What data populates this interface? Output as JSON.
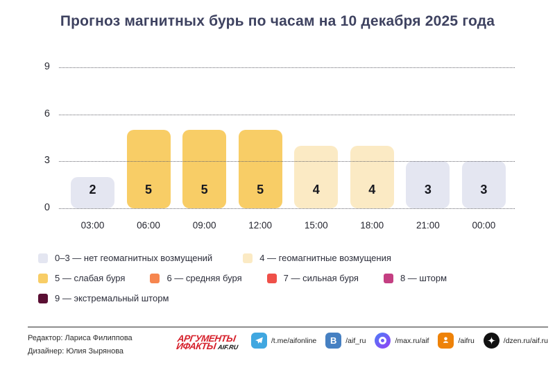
{
  "title": "Прогноз магнитных бурь по часам на 10 декабря 2025 года",
  "chart_data": {
    "type": "bar",
    "title": "Прогноз магнитных бурь по часам на 10 декабря 2025 года",
    "categories": [
      "03:00",
      "06:00",
      "09:00",
      "12:00",
      "15:00",
      "18:00",
      "21:00",
      "00:00"
    ],
    "values": [
      2,
      5,
      5,
      5,
      4,
      4,
      3,
      3
    ],
    "xlabel": "",
    "ylabel": "",
    "ylim": [
      0,
      9
    ],
    "yticks": [
      0,
      3,
      6,
      9
    ],
    "ytick_labels_top_down": [
      "9",
      "6",
      "3",
      "0"
    ],
    "grid": "horizontal-dotted",
    "legend_position": "bottom",
    "bar_colors_by_level": {
      "0-3": "#E4E6F1",
      "4": "#FBEAC4",
      "5": "#F8CD66",
      "6": "#F6864F",
      "7": "#EF5049",
      "8": "#C43F82",
      "9": "#5A0F33"
    }
  },
  "legend": {
    "items": [
      {
        "label": "0–3 — нет геомагнитных возмущений",
        "color": "#E4E6F1"
      },
      {
        "label": "4 — геомагнитные возмущения",
        "color": "#FBEAC4"
      },
      {
        "label": "5 — слабая буря",
        "color": "#F8CD66"
      },
      {
        "label": "6 — средняя буря",
        "color": "#F6864F"
      },
      {
        "label": "7 — сильная буря",
        "color": "#EF5049"
      },
      {
        "label": "8 — шторм",
        "color": "#C43F82"
      },
      {
        "label": "9 — экстремальный шторм",
        "color": "#5A0F33"
      }
    ]
  },
  "footer": {
    "credits": [
      "Редактор: Лариса Филиппова",
      "Дизайнер: Юлия Зырянова"
    ],
    "logo": {
      "line1": "АРГУМЕНТЫ",
      "line2": "ИФАКТЫ",
      "suffix": "AIF.RU",
      "color": "#D6202B"
    },
    "social": [
      {
        "icon": "telegram-icon",
        "label": "/t.me/aifonline",
        "bg": "#40A7E0"
      },
      {
        "icon": "vk-icon",
        "label": "/aif_ru",
        "bg": "#4680C2"
      },
      {
        "icon": "max-icon",
        "label": "/max.ru/aif",
        "bg": "linear-gradient(140deg,#4D7DF7,#9340F5)"
      },
      {
        "icon": "ok-icon",
        "label": "/aifru",
        "bg": "#EE8208"
      },
      {
        "icon": "dzen-icon",
        "label": "/dzen.ru/aif.ru",
        "bg": "#111111"
      }
    ]
  }
}
